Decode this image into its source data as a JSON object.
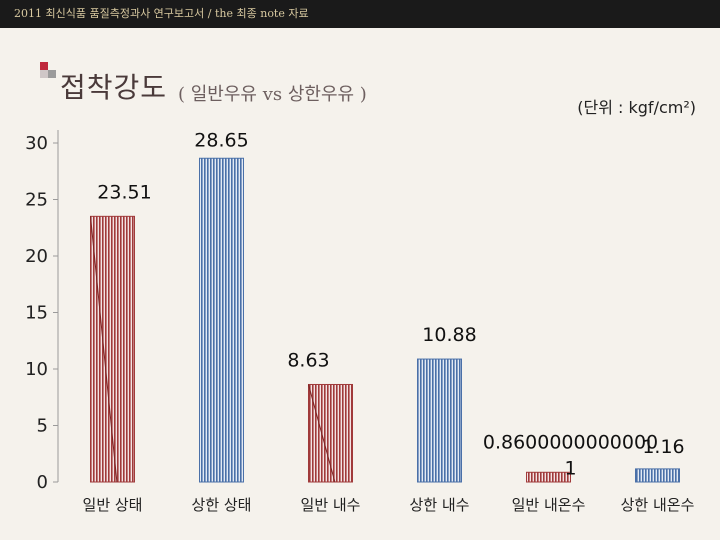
{
  "header": {
    "text": "2011 최신식품 품질측정과사 연구보고서 / the 최종 note 자료"
  },
  "slide": {
    "title": "접착강도",
    "subtitle": "( 일반우유 vs 상한우유 )",
    "unit": "(단위 : kgf/cm²)"
  },
  "colors": {
    "red_series": "#a03a3a",
    "blue_series": "#4a70a8",
    "background": "#f5f2ec",
    "accent_square_red": "#c0283c",
    "accent_square_gray": "#9b9b9b"
  },
  "chart_data": {
    "type": "bar",
    "categories": [
      "일반 상태",
      "상한 상태",
      "일반 내수",
      "상한 내수",
      "일반 내온수",
      "상한 내온수"
    ],
    "values": [
      23.51,
      28.65,
      8.63,
      10.88,
      0.86,
      1.16
    ],
    "data_labels": [
      "23.51",
      "28.65",
      "8.63",
      "10.88",
      "0.86000000000001",
      "1.16"
    ],
    "bar_colors": [
      "red",
      "blue",
      "red",
      "blue",
      "red",
      "blue"
    ],
    "yticks": [
      "0",
      "5",
      "10",
      "15",
      "20",
      "25",
      "30"
    ],
    "ylim": [
      0,
      30
    ],
    "title": "",
    "xlabel": "",
    "ylabel": "",
    "grid": false
  }
}
